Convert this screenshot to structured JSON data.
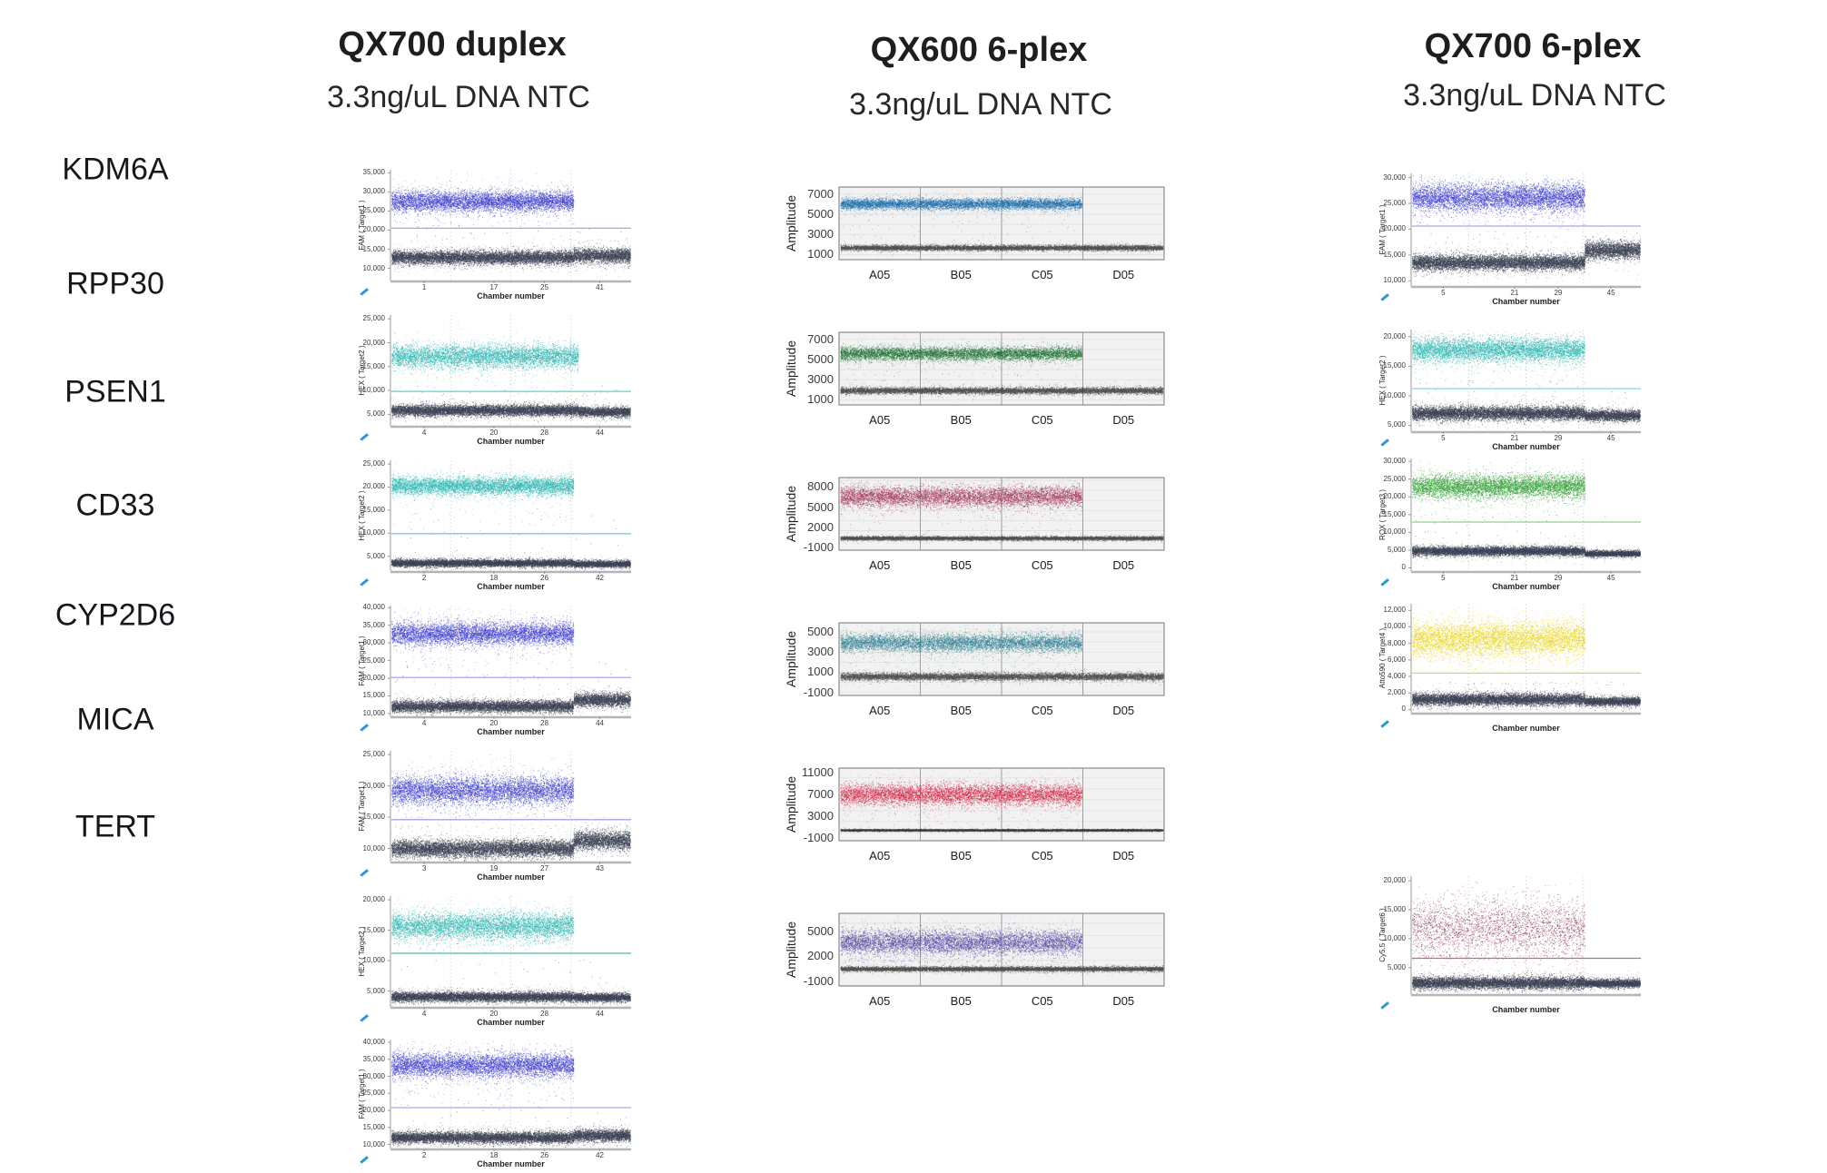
{
  "columns": [
    {
      "id": "qx700-duplex",
      "title": "QX700 duplex",
      "subtitle": "3.3ng/uL DNA NTC"
    },
    {
      "id": "qx600-6plex",
      "title": "QX600 6-plex",
      "subtitle": "3.3ng/uL DNA NTC"
    },
    {
      "id": "qx700-6plex",
      "title": "QX700 6-plex",
      "subtitle": "3.3ng/uL DNA NTC"
    }
  ],
  "row_labels": [
    "KDM6A",
    "RPP30",
    "PSEN1",
    "CD33",
    "CYP2D6",
    "MICA",
    "TERT"
  ],
  "chart_data": [
    {
      "id": "c1r1",
      "platform": "QX700 duplex",
      "gene": "KDM6A",
      "type": "scatter",
      "style": "chamber",
      "ylabel": "FAM ( Target1 )",
      "xlabel": "Chamber number",
      "yticks": [
        10000,
        15000,
        20000,
        25000,
        30000,
        35000
      ],
      "ylim": [
        6800,
        35800
      ],
      "xticks": [
        {
          "label": "1",
          "pos": 0.14
        },
        {
          "label": "17",
          "pos": 0.43
        },
        {
          "label": "25",
          "pos": 0.64
        },
        {
          "label": "41",
          "pos": 0.87
        }
      ],
      "positive": {
        "color": "#3a3dd0",
        "center": 27600,
        "spread": 1300,
        "xend": 0.76
      },
      "threshold": {
        "value": 20500,
        "color": "#a6a6ea"
      },
      "negative": {
        "color": "#3e4456",
        "center": 12900,
        "spread": 850,
        "step_at": 0.76,
        "step_center": 13400,
        "step_spread": 950
      }
    },
    {
      "id": "c1r2",
      "platform": "QX700 duplex",
      "gene": "RPP30",
      "type": "scatter",
      "style": "chamber",
      "ylabel": "HEX ( Target2 )",
      "xlabel": "Chamber number",
      "yticks": [
        5000,
        10000,
        15000,
        20000,
        25000
      ],
      "ylim": [
        2600,
        25800
      ],
      "xticks": [
        {
          "label": "4",
          "pos": 0.14
        },
        {
          "label": "20",
          "pos": 0.43
        },
        {
          "label": "28",
          "pos": 0.64
        },
        {
          "label": "44",
          "pos": 0.87
        }
      ],
      "positive": {
        "color": "#2cb7b0",
        "center": 17200,
        "spread": 1200,
        "xend": 0.78
      },
      "threshold": {
        "value": 9800,
        "color": "#63cdc7"
      },
      "negative": {
        "color": "#3e4456",
        "center": 5900,
        "spread": 550,
        "step_at": 0.78,
        "step_center": 5600,
        "step_spread": 500
      }
    },
    {
      "id": "c1r3",
      "platform": "QX700 duplex",
      "gene": "PSEN1",
      "type": "scatter",
      "style": "chamber",
      "ylabel": "HEX ( Target2 )",
      "xlabel": "Chamber number",
      "yticks": [
        5000,
        10000,
        15000,
        20000,
        25000
      ],
      "ylim": [
        1800,
        25800
      ],
      "xticks": [
        {
          "label": "2",
          "pos": 0.14
        },
        {
          "label": "18",
          "pos": 0.43
        },
        {
          "label": "26",
          "pos": 0.64
        },
        {
          "label": "42",
          "pos": 0.87
        }
      ],
      "positive": {
        "color": "#2cb7b0",
        "center": 20300,
        "spread": 950,
        "xend": 0.76
      },
      "threshold": {
        "value": 9900,
        "color": "#7cc6e6"
      },
      "negative": {
        "color": "#3e4456",
        "center": 3600,
        "spread": 380,
        "step_at": 0.76,
        "step_center": 3400,
        "step_spread": 350
      }
    },
    {
      "id": "c1r4",
      "platform": "QX700 duplex",
      "gene": "CD33",
      "type": "scatter",
      "style": "chamber",
      "ylabel": "FAM ( Target1 )",
      "xlabel": "Chamber number",
      "yticks": [
        10000,
        15000,
        20000,
        25000,
        30000,
        35000,
        40000
      ],
      "ylim": [
        9200,
        40600
      ],
      "xticks": [
        {
          "label": "4",
          "pos": 0.14
        },
        {
          "label": "20",
          "pos": 0.43
        },
        {
          "label": "28",
          "pos": 0.64
        },
        {
          "label": "44",
          "pos": 0.87
        }
      ],
      "positive": {
        "color": "#3a3dd0",
        "center": 32700,
        "spread": 1600,
        "xend": 0.76
      },
      "threshold": {
        "value": 20200,
        "color": "#a6a6ea"
      },
      "negative": {
        "color": "#3e4456",
        "center": 12100,
        "spread": 800,
        "step_at": 0.76,
        "step_center": 13900,
        "step_spread": 900
      }
    },
    {
      "id": "c1r5",
      "platform": "QX700 duplex",
      "gene": "CYP2D6",
      "type": "scatter",
      "style": "chamber",
      "ylabel": "FAM ( Target1 )",
      "xlabel": "Chamber number",
      "yticks": [
        10000,
        15000,
        20000,
        25000
      ],
      "ylim": [
        7900,
        25600
      ],
      "xticks": [
        {
          "label": "3",
          "pos": 0.14
        },
        {
          "label": "19",
          "pos": 0.43
        },
        {
          "label": "27",
          "pos": 0.64
        },
        {
          "label": "43",
          "pos": 0.87
        }
      ],
      "positive": {
        "color": "#3a3dd0",
        "center": 19300,
        "spread": 1100,
        "xend": 0.76
      },
      "threshold": {
        "value": 14600,
        "color": "#a6a6ea"
      },
      "negative": {
        "color": "#3e4456",
        "center": 10000,
        "spread": 650,
        "step_at": 0.76,
        "step_center": 11300,
        "step_spread": 700
      }
    },
    {
      "id": "c1r6",
      "platform": "QX700 duplex",
      "gene": "MICA",
      "type": "scatter",
      "style": "chamber",
      "ylabel": "HEX ( Target2 )",
      "xlabel": "Chamber number",
      "yticks": [
        5000,
        10000,
        15000,
        20000
      ],
      "ylim": [
        2400,
        20600
      ],
      "xticks": [
        {
          "label": "4",
          "pos": 0.14
        },
        {
          "label": "20",
          "pos": 0.43
        },
        {
          "label": "28",
          "pos": 0.64
        },
        {
          "label": "44",
          "pos": 0.87
        }
      ],
      "positive": {
        "color": "#2cb7b0",
        "center": 15700,
        "spread": 1100,
        "xend": 0.76
      },
      "threshold": {
        "value": 11200,
        "color": "#52b9a8"
      },
      "negative": {
        "color": "#3e4456",
        "center": 4100,
        "spread": 380,
        "step_at": 0.76,
        "step_center": 4000,
        "step_spread": 330
      }
    },
    {
      "id": "c1r7",
      "platform": "QX700 duplex",
      "gene": "TERT",
      "type": "scatter",
      "style": "chamber",
      "ylabel": "FAM ( Target1 )",
      "xlabel": "Chamber number",
      "yticks": [
        10000,
        15000,
        20000,
        25000,
        30000,
        35000,
        40000
      ],
      "ylim": [
        8800,
        40800
      ],
      "xticks": [
        {
          "label": "2",
          "pos": 0.14
        },
        {
          "label": "18",
          "pos": 0.43
        },
        {
          "label": "26",
          "pos": 0.64
        },
        {
          "label": "42",
          "pos": 0.87
        }
      ],
      "positive": {
        "color": "#3a3dd0",
        "center": 33300,
        "spread": 1700,
        "xend": 0.76
      },
      "threshold": {
        "value": 20800,
        "color": "#a6a6ea"
      },
      "negative": {
        "color": "#3e4456",
        "center": 12100,
        "spread": 800,
        "step_at": 0.76,
        "step_center": 12700,
        "step_spread": 850
      }
    },
    {
      "id": "c2r1",
      "platform": "QX600 6-plex",
      "gene": "KDM6A",
      "type": "scatter",
      "style": "well",
      "ylabel": "Amplitude",
      "wells": [
        "A05",
        "B05",
        "C05",
        "D05"
      ],
      "yticks": [
        1000,
        3000,
        5000,
        7000
      ],
      "ylim": [
        500,
        7700
      ],
      "positive": {
        "color": "#1e6fae",
        "center": 6050,
        "spread": 270,
        "xend": 0.75
      },
      "negative": {
        "color": "#515151",
        "center": 1700,
        "spread": 120
      }
    },
    {
      "id": "c2r2",
      "platform": "QX600 6-plex",
      "gene": "RPP30",
      "type": "scatter",
      "style": "well",
      "ylabel": "Amplitude",
      "wells": [
        "A05",
        "B05",
        "C05",
        "D05"
      ],
      "yticks": [
        1000,
        3000,
        5000,
        7000
      ],
      "ylim": [
        500,
        7700
      ],
      "positive": {
        "color": "#1d7434",
        "center": 5600,
        "spread": 320,
        "xend": 0.75
      },
      "negative": {
        "color": "#515151",
        "center": 1950,
        "spread": 150
      }
    },
    {
      "id": "c2r3",
      "platform": "QX600 6-plex",
      "gene": "PSEN1",
      "type": "scatter",
      "style": "well",
      "ylabel": "Amplitude",
      "wells": [
        "A05",
        "B05",
        "C05",
        "D05"
      ],
      "yticks": [
        -1000,
        2000,
        5000,
        8000
      ],
      "ylim": [
        -1400,
        9400
      ],
      "positive": {
        "color": "#a23459",
        "center": 6600,
        "spread": 750,
        "xend": 0.75
      },
      "negative": {
        "color": "#515151",
        "center": 420,
        "spread": 130
      }
    },
    {
      "id": "c2r4",
      "platform": "QX600 6-plex",
      "gene": "CD33",
      "type": "scatter",
      "style": "well",
      "ylabel": "Amplitude",
      "wells": [
        "A05",
        "B05",
        "C05",
        "D05"
      ],
      "yticks": [
        -1000,
        1000,
        3000,
        5000
      ],
      "ylim": [
        -1300,
        5900
      ],
      "positive": {
        "color": "#2f8193",
        "center": 3950,
        "spread": 430,
        "xend": 0.75
      },
      "negative": {
        "color": "#515151",
        "center": 600,
        "spread": 170
      }
    },
    {
      "id": "c2r5",
      "platform": "QX600 6-plex",
      "gene": "CYP2D6",
      "type": "scatter",
      "style": "well",
      "ylabel": "Amplitude",
      "wells": [
        "A05",
        "B05",
        "C05",
        "D05"
      ],
      "yticks": [
        -1000,
        3000,
        7000,
        11000
      ],
      "ylim": [
        -1500,
        11800
      ],
      "positive": {
        "color": "#d5203f",
        "center": 7000,
        "spread": 950,
        "xend": 0.75
      },
      "negative": {
        "color": "#3d3d3d",
        "center": 480,
        "spread": 80
      }
    },
    {
      "id": "c2r6",
      "platform": "QX600 6-plex",
      "gene": "MICA",
      "type": "scatter",
      "style": "well",
      "ylabel": "Amplitude",
      "wells": [
        "A05",
        "B05",
        "C05",
        "D05"
      ],
      "yticks": [
        -1000,
        2000,
        5000
      ],
      "ylim": [
        -1600,
        7200
      ],
      "positive": {
        "color": "#4f43a2",
        "center": 3700,
        "spread": 720,
        "xend": 0.75
      },
      "negative": {
        "color": "#515151",
        "center": 500,
        "spread": 130
      }
    },
    {
      "id": "c3r1",
      "platform": "QX700 6-plex",
      "gene": "KDM6A",
      "type": "scatter",
      "style": "chamber",
      "ylabel": "FAM ( Target1 )",
      "xlabel": "Chamber number",
      "yticks": [
        10000,
        15000,
        20000,
        25000,
        30000
      ],
      "ylim": [
        9000,
        30800
      ],
      "xticks": [
        {
          "label": "5",
          "pos": 0.14
        },
        {
          "label": "21",
          "pos": 0.45
        },
        {
          "label": "29",
          "pos": 0.64
        },
        {
          "label": "45",
          "pos": 0.87
        }
      ],
      "positive": {
        "color": "#3a3dd0",
        "center": 26200,
        "spread": 1300,
        "xend": 0.755
      },
      "threshold": {
        "value": 20600,
        "color": "#a6a6ea"
      },
      "negative": {
        "color": "#3e4456",
        "center": 13600,
        "spread": 700,
        "step_at": 0.755,
        "step_center": 16000,
        "step_spread": 800
      }
    },
    {
      "id": "c3r2",
      "platform": "QX700 6-plex",
      "gene": "RPP30",
      "type": "scatter",
      "style": "chamber",
      "ylabel": "HEX ( Target2 )",
      "xlabel": "Chamber number",
      "yticks": [
        5000,
        10000,
        15000,
        20000
      ],
      "ylim": [
        4000,
        21200
      ],
      "xticks": [
        {
          "label": "5",
          "pos": 0.14
        },
        {
          "label": "21",
          "pos": 0.45
        },
        {
          "label": "29",
          "pos": 0.64
        },
        {
          "label": "45",
          "pos": 0.87
        }
      ],
      "positive": {
        "color": "#2cb7b0",
        "center": 17800,
        "spread": 1000,
        "xend": 0.755
      },
      "threshold": {
        "value": 11200,
        "color": "#8ed2e8"
      },
      "negative": {
        "color": "#3e4456",
        "center": 7100,
        "spread": 550,
        "step_at": 0.755,
        "step_center": 6700,
        "step_spread": 450
      }
    },
    {
      "id": "c3r3",
      "platform": "QX700 6-plex",
      "gene": "PSEN1",
      "type": "scatter",
      "style": "chamber",
      "ylabel": "ROX ( Target3 )",
      "xlabel": "Chamber number",
      "yticks": [
        0,
        5000,
        10000,
        15000,
        20000,
        25000,
        30000
      ],
      "ylim": [
        -900,
        30800
      ],
      "xticks": [
        {
          "label": "5",
          "pos": 0.14
        },
        {
          "label": "21",
          "pos": 0.45
        },
        {
          "label": "29",
          "pos": 0.64
        },
        {
          "label": "45",
          "pos": 0.87
        }
      ],
      "positive": {
        "color": "#2f9e33",
        "center": 23000,
        "spread": 1600,
        "xend": 0.755
      },
      "threshold": {
        "value": 12900,
        "color": "#8fd289"
      },
      "negative": {
        "color": "#3e4456",
        "center": 4800,
        "spread": 600,
        "step_at": 0.755,
        "step_center": 4100,
        "step_spread": 400
      }
    },
    {
      "id": "c3r4",
      "platform": "QX700 6-plex",
      "gene": "CD33",
      "type": "scatter",
      "style": "chamber",
      "ylabel": "Atto590 ( Target4 )",
      "xlabel": "Chamber number",
      "yticks": [
        0,
        2000,
        4000,
        6000,
        8000,
        10000,
        12000
      ],
      "ylim": [
        -400,
        12800
      ],
      "xticks": [],
      "positive": {
        "color": "#e8d41c",
        "center": 8600,
        "spread": 1050,
        "xend": 0.755
      },
      "threshold": {
        "value": 4400,
        "color": "#ddd45c"
      },
      "negative": {
        "color": "#3e4456",
        "center": 1250,
        "spread": 350,
        "step_at": 0.755,
        "step_center": 1000,
        "step_spread": 250
      }
    },
    {
      "id": "c3r6",
      "platform": "QX700 6-plex",
      "gene": "MICA",
      "type": "scatter",
      "style": "chamber",
      "ylabel": "Cy5.5 ( Target6 )",
      "xlabel": "Chamber number",
      "yticks": [
        5000,
        10000,
        15000,
        20000
      ],
      "ylim": [
        400,
        20800
      ],
      "xticks": [],
      "positive": {
        "color": "#8e3050",
        "center": 11800,
        "spread": 2300,
        "xend": 0.755,
        "density": 0.5
      },
      "threshold": {
        "value": 6600,
        "color": "#bb6e84"
      },
      "negative": {
        "color": "#3e4456",
        "center": 2400,
        "spread": 500,
        "step_at": 0.755,
        "step_center": 2300,
        "step_spread": 350
      }
    }
  ]
}
